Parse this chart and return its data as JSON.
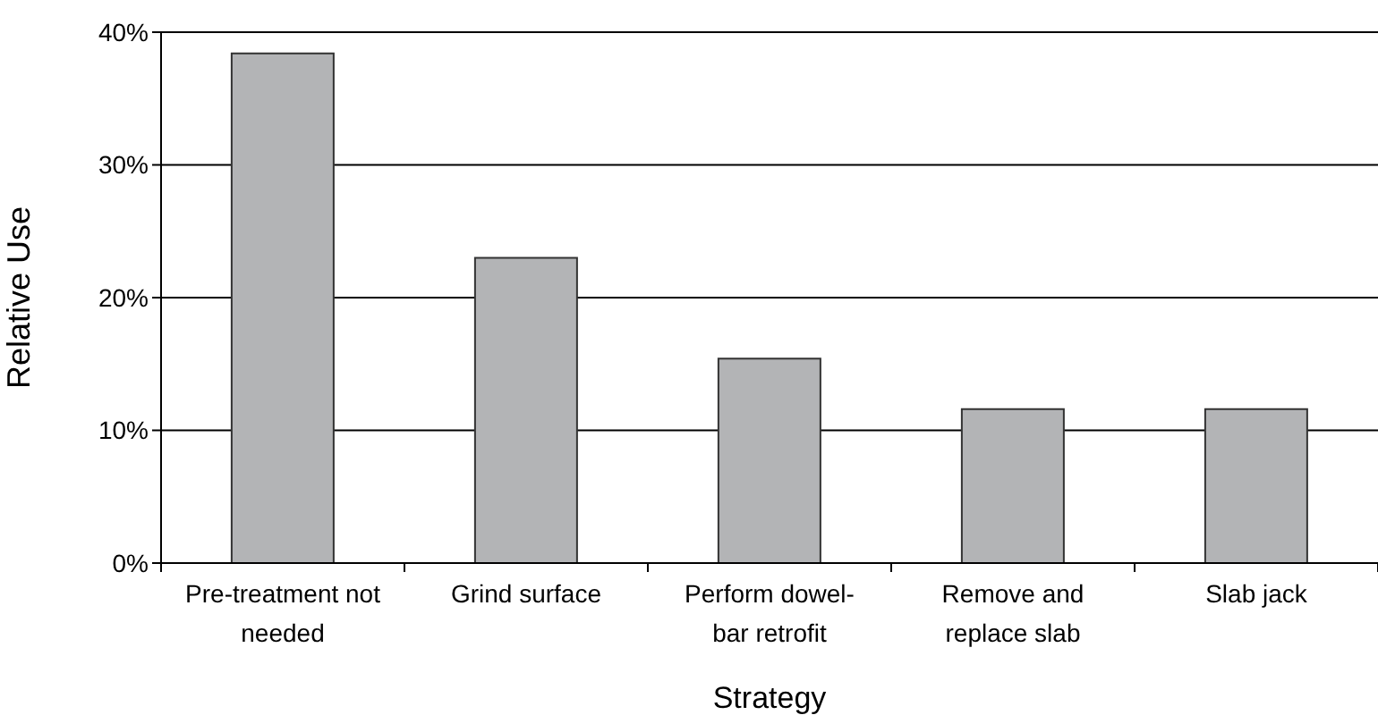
{
  "chart_data": {
    "type": "bar",
    "xlabel": "Strategy",
    "ylabel": "Relative Use",
    "categories": [
      "Pre-treatment not\nneeded",
      "Grind surface",
      "Perform dowel-\nbar retrofit",
      "Remove and\nreplace slab",
      "Slab jack"
    ],
    "values": [
      38.4,
      23.0,
      15.4,
      11.6,
      11.6
    ],
    "color": "#b3b4b6",
    "ylim": [
      0,
      40
    ],
    "yticks": [
      {
        "value": 0,
        "label": "0%"
      },
      {
        "value": 10,
        "label": "10%"
      },
      {
        "value": 20,
        "label": "20%"
      },
      {
        "value": 30,
        "label": "30%"
      },
      {
        "value": 40,
        "label": "40%"
      }
    ],
    "grid": "y"
  }
}
